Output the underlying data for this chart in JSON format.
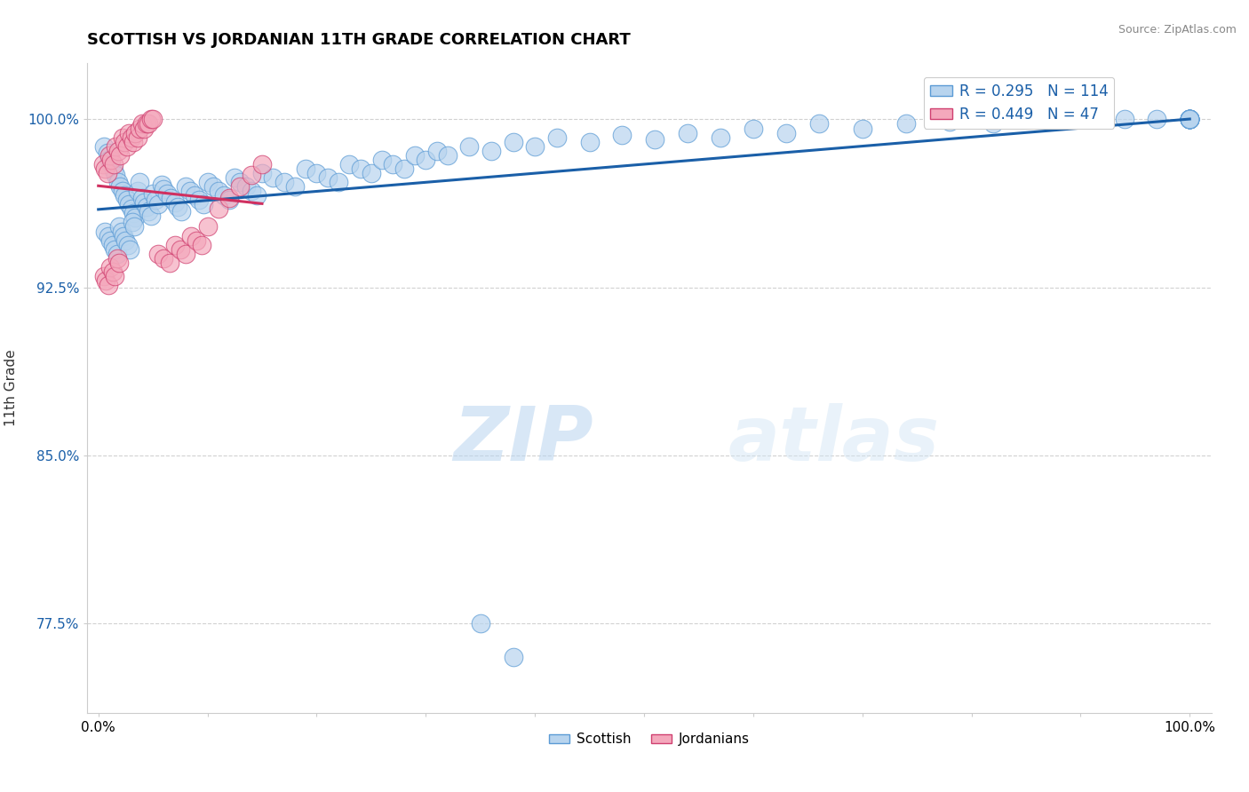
{
  "title": "SCOTTISH VS JORDANIAN 11TH GRADE CORRELATION CHART",
  "source": "Source: ZipAtlas.com",
  "ylabel": "11th Grade",
  "xlim": [
    -0.01,
    1.02
  ],
  "ylim": [
    0.735,
    1.025
  ],
  "xticks": [
    0.0,
    0.1,
    0.2,
    0.3,
    0.4,
    0.5,
    0.6,
    0.7,
    0.8,
    0.9,
    1.0
  ],
  "xticklabels": [
    "0.0%",
    "",
    "",
    "",
    "",
    "",
    "",
    "",
    "",
    "",
    "100.0%"
  ],
  "yticks": [
    0.775,
    0.85,
    0.925,
    1.0
  ],
  "yticklabels": [
    "77.5%",
    "85.0%",
    "92.5%",
    "100.0%"
  ],
  "scottish_color": "#b8d4ee",
  "scottish_edge": "#5b9bd5",
  "jordanian_color": "#f4a8bc",
  "jordanian_edge": "#d04070",
  "blue_line_color": "#1a5fa8",
  "pink_line_color": "#d03060",
  "legend_text_color": "#1a5fa8",
  "R_scottish": 0.295,
  "N_scottish": 114,
  "R_jordanian": 0.449,
  "N_jordanian": 47,
  "watermark_zip": "ZIP",
  "watermark_atlas": "atlas",
  "scottish_x": [
    0.005,
    0.008,
    0.01,
    0.012,
    0.014,
    0.016,
    0.018,
    0.02,
    0.022,
    0.024,
    0.026,
    0.028,
    0.03,
    0.032,
    0.034,
    0.036,
    0.038,
    0.04,
    0.042,
    0.044,
    0.046,
    0.048,
    0.05,
    0.052,
    0.055,
    0.058,
    0.06,
    0.063,
    0.066,
    0.07,
    0.073,
    0.076,
    0.08,
    0.084,
    0.088,
    0.092,
    0.096,
    0.1,
    0.105,
    0.11,
    0.115,
    0.12,
    0.125,
    0.13,
    0.135,
    0.14,
    0.145,
    0.15,
    0.16,
    0.17,
    0.18,
    0.19,
    0.2,
    0.21,
    0.22,
    0.23,
    0.24,
    0.25,
    0.26,
    0.27,
    0.28,
    0.29,
    0.3,
    0.31,
    0.32,
    0.34,
    0.36,
    0.38,
    0.4,
    0.42,
    0.45,
    0.48,
    0.51,
    0.54,
    0.57,
    0.6,
    0.63,
    0.66,
    0.7,
    0.74,
    0.78,
    0.82,
    0.86,
    0.9,
    0.94,
    0.97,
    1.0,
    1.0,
    1.0,
    1.0,
    1.0,
    1.0,
    1.0,
    1.0,
    1.0,
    1.0,
    1.0,
    1.0,
    0.35,
    0.38,
    0.006,
    0.009,
    0.011,
    0.013,
    0.015,
    0.017,
    0.019,
    0.021,
    0.023,
    0.025,
    0.027,
    0.029,
    0.031,
    0.033
  ],
  "scottish_y": [
    0.988,
    0.985,
    0.982,
    0.98,
    0.977,
    0.975,
    0.972,
    0.97,
    0.968,
    0.966,
    0.964,
    0.962,
    0.96,
    0.958,
    0.956,
    0.968,
    0.972,
    0.965,
    0.963,
    0.961,
    0.959,
    0.957,
    0.967,
    0.964,
    0.962,
    0.971,
    0.969,
    0.967,
    0.965,
    0.963,
    0.961,
    0.959,
    0.97,
    0.968,
    0.966,
    0.964,
    0.962,
    0.972,
    0.97,
    0.968,
    0.966,
    0.964,
    0.974,
    0.972,
    0.97,
    0.968,
    0.966,
    0.976,
    0.974,
    0.972,
    0.97,
    0.978,
    0.976,
    0.974,
    0.972,
    0.98,
    0.978,
    0.976,
    0.982,
    0.98,
    0.978,
    0.984,
    0.982,
    0.986,
    0.984,
    0.988,
    0.986,
    0.99,
    0.988,
    0.992,
    0.99,
    0.993,
    0.991,
    0.994,
    0.992,
    0.996,
    0.994,
    0.998,
    0.996,
    0.998,
    0.999,
    0.998,
    1.0,
    1.0,
    1.0,
    1.0,
    1.0,
    1.0,
    1.0,
    1.0,
    1.0,
    1.0,
    1.0,
    1.0,
    1.0,
    1.0,
    1.0,
    1.0,
    0.775,
    0.76,
    0.95,
    0.948,
    0.946,
    0.944,
    0.942,
    0.94,
    0.952,
    0.95,
    0.948,
    0.946,
    0.944,
    0.942,
    0.954,
    0.952
  ],
  "jordanian_x": [
    0.004,
    0.006,
    0.008,
    0.01,
    0.012,
    0.014,
    0.016,
    0.018,
    0.02,
    0.022,
    0.024,
    0.026,
    0.028,
    0.03,
    0.032,
    0.034,
    0.036,
    0.038,
    0.04,
    0.042,
    0.044,
    0.046,
    0.048,
    0.05,
    0.055,
    0.06,
    0.065,
    0.07,
    0.075,
    0.08,
    0.085,
    0.09,
    0.095,
    0.1,
    0.11,
    0.12,
    0.13,
    0.14,
    0.15,
    0.005,
    0.007,
    0.009,
    0.011,
    0.013,
    0.015,
    0.017,
    0.019
  ],
  "jordanian_y": [
    0.98,
    0.978,
    0.976,
    0.984,
    0.982,
    0.98,
    0.988,
    0.986,
    0.984,
    0.992,
    0.99,
    0.988,
    0.994,
    0.992,
    0.99,
    0.994,
    0.992,
    0.996,
    0.998,
    0.996,
    0.998,
    0.998,
    1.0,
    1.0,
    0.94,
    0.938,
    0.936,
    0.944,
    0.942,
    0.94,
    0.948,
    0.946,
    0.944,
    0.952,
    0.96,
    0.965,
    0.97,
    0.975,
    0.98,
    0.93,
    0.928,
    0.926,
    0.934,
    0.932,
    0.93,
    0.938,
    0.936
  ]
}
